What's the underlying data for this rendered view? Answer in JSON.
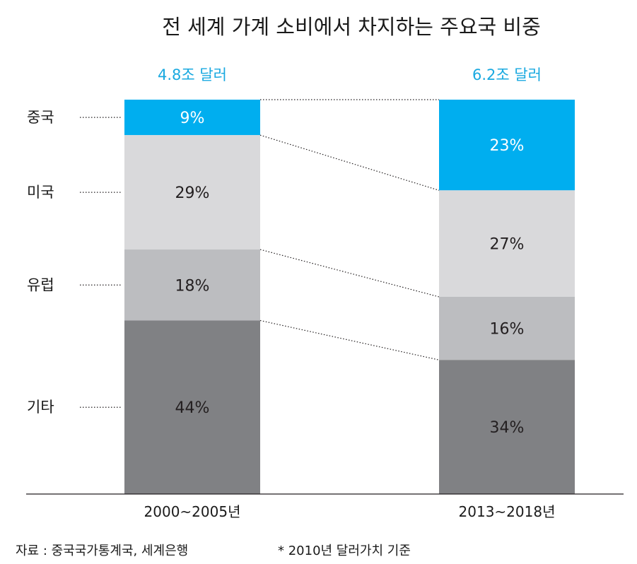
{
  "chart_data": {
    "type": "bar",
    "stacked": true,
    "title": "전 세계 가계 소비에서 차지하는 주요국 비중",
    "categories": [
      "2000~2005년",
      "2013~2018년"
    ],
    "totals": [
      "4.8조 달러",
      "6.2조 달러"
    ],
    "series": [
      {
        "name": "중국",
        "values": [
          9,
          23
        ],
        "labels": [
          "9%",
          "23%"
        ],
        "color": "#00aeef",
        "text_color": "#ffffff"
      },
      {
        "name": "미국",
        "values": [
          29,
          27
        ],
        "labels": [
          "29%",
          "27%"
        ],
        "color": "#d9d9db",
        "text_color": "#231f20"
      },
      {
        "name": "유럽",
        "values": [
          18,
          16
        ],
        "labels": [
          "18%",
          "16%"
        ],
        "color": "#bcbdc0",
        "text_color": "#231f20"
      },
      {
        "name": "기타",
        "values": [
          44,
          34
        ],
        "labels": [
          "44%",
          "34%"
        ],
        "color": "#808184",
        "text_color": "#231f20"
      }
    ],
    "unit": "%",
    "xlabel": "",
    "ylabel": "",
    "ylim": [
      0,
      100
    ]
  },
  "footer": {
    "source": "자료 :  중국국가통계국, 세계은행",
    "note": "* 2010년 달러가치 기준"
  }
}
